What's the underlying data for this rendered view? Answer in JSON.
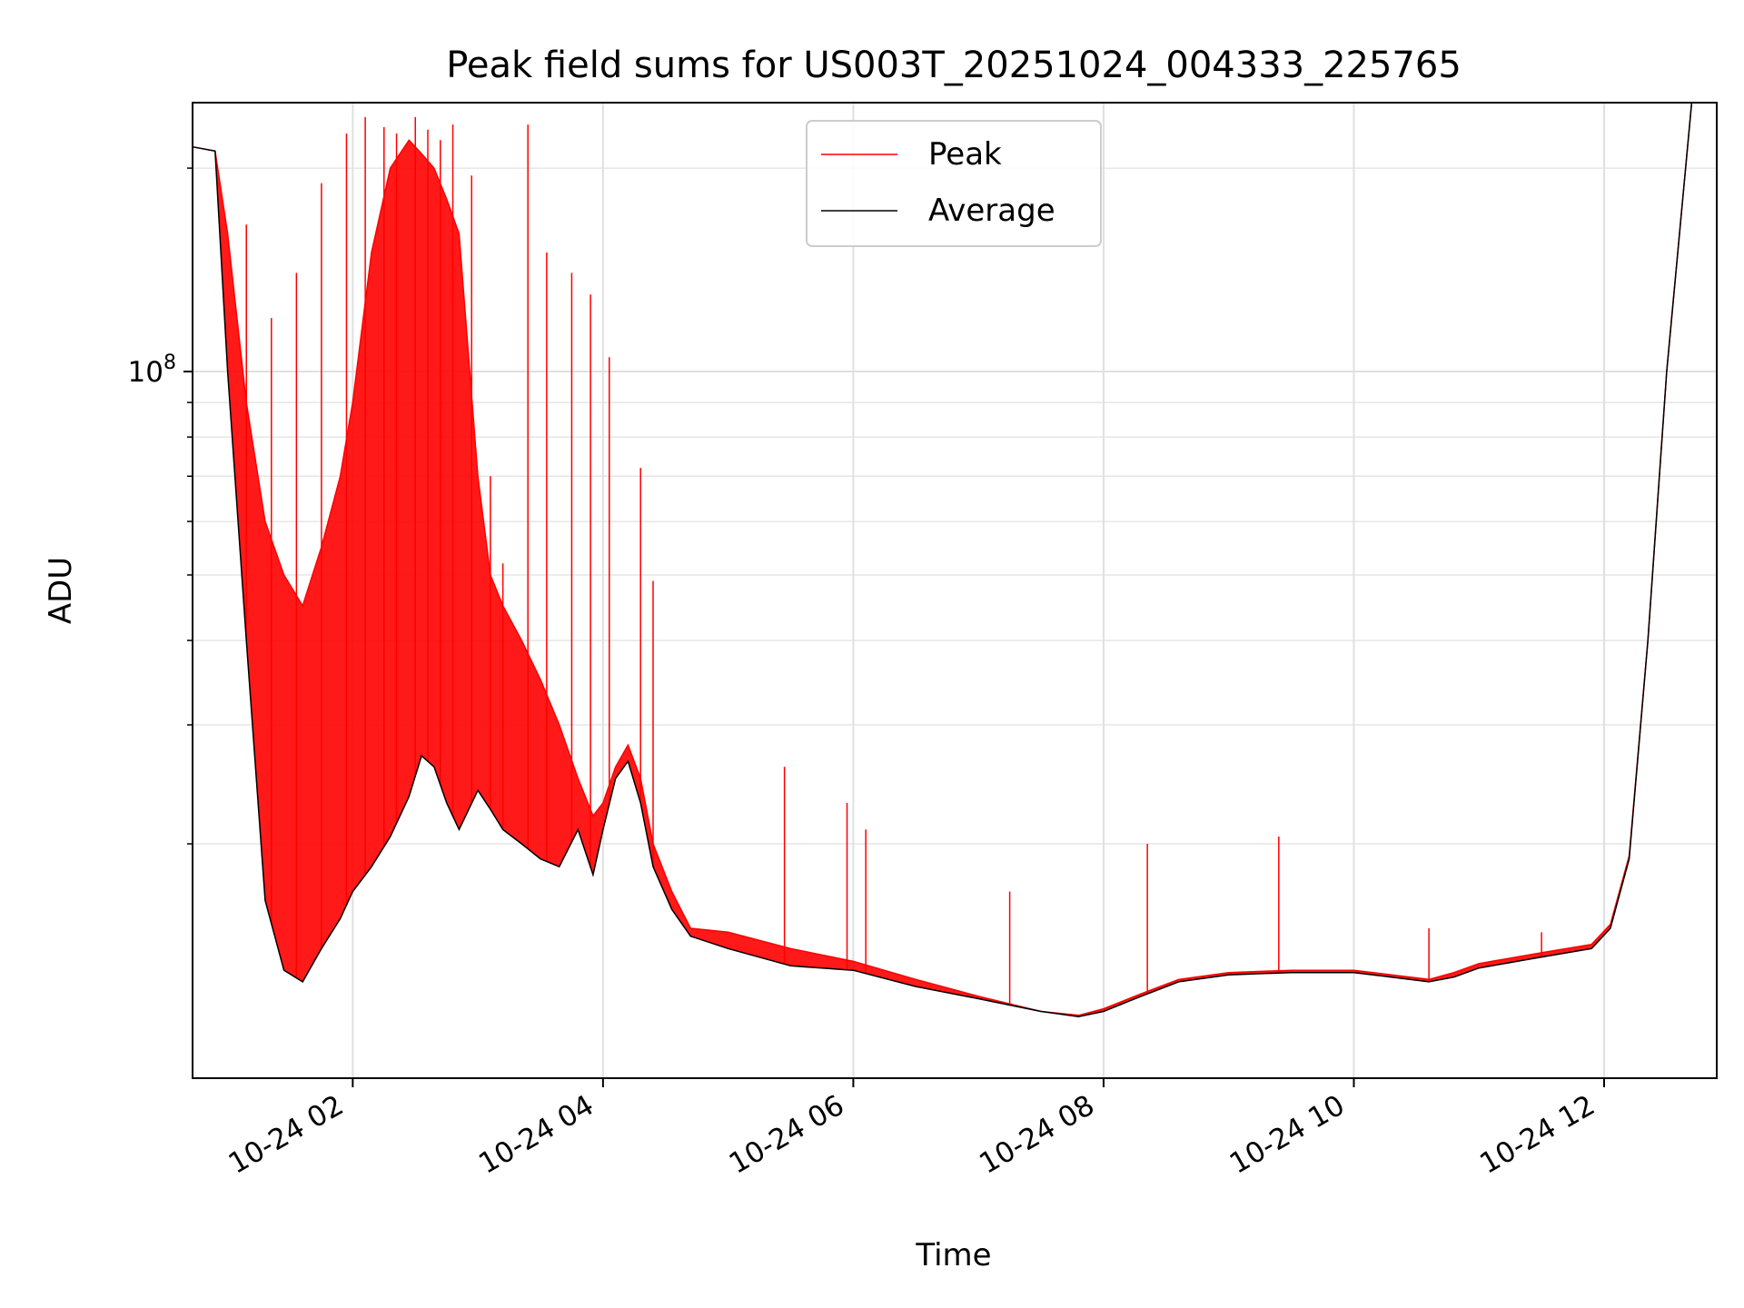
{
  "chart_data": {
    "type": "line",
    "title": "Peak field sums for US003T_20251024_004333_225765",
    "xlabel": "Time",
    "ylabel": "ADU",
    "yscale": "log",
    "ylim": [
      9000000,
      250000000
    ],
    "xlim_hours": [
      0.72,
      12.9
    ],
    "x_ticks": [
      {
        "hour": 2,
        "label": "10-24 02"
      },
      {
        "hour": 4,
        "label": "10-24 04"
      },
      {
        "hour": 6,
        "label": "10-24 06"
      },
      {
        "hour": 8,
        "label": "10-24 08"
      },
      {
        "hour": 10,
        "label": "10-24 10"
      },
      {
        "hour": 12,
        "label": "10-24 12"
      }
    ],
    "y_major_tick": {
      "value": 100000000,
      "label_base": "10",
      "label_exp": "8"
    },
    "y_minor_ticks": [
      20000000,
      30000000,
      40000000,
      50000000,
      60000000,
      70000000,
      80000000,
      90000000,
      200000000
    ],
    "grid": true,
    "legend": {
      "position": "upper center",
      "entries": [
        {
          "name": "Peak",
          "color": "#ff0000"
        },
        {
          "name": "Average",
          "color": "#000000"
        }
      ]
    },
    "series": [
      {
        "name": "Average",
        "color": "#000000",
        "hours": [
          0.72,
          0.9,
          1.0,
          1.15,
          1.3,
          1.45,
          1.6,
          1.75,
          1.9,
          2.0,
          2.15,
          2.3,
          2.45,
          2.55,
          2.65,
          2.75,
          2.85,
          3.0,
          3.1,
          3.2,
          3.35,
          3.5,
          3.65,
          3.8,
          3.92,
          4.0,
          4.1,
          4.2,
          4.3,
          4.4,
          4.55,
          4.7,
          5.0,
          5.5,
          6.0,
          6.5,
          7.0,
          7.5,
          7.8,
          8.0,
          8.3,
          8.6,
          9.0,
          9.5,
          10.0,
          10.3,
          10.6,
          10.8,
          11.0,
          11.5,
          11.9,
          12.05,
          12.2,
          12.35,
          12.5,
          12.7
        ],
        "values": [
          215000000,
          212000000,
          100000000,
          40000000,
          16500000,
          13000000,
          12500000,
          14000000,
          15500000,
          17000000,
          18500000,
          20500000,
          23500000,
          27000000,
          26000000,
          23000000,
          21000000,
          24000000,
          22500000,
          21000000,
          20000000,
          19000000,
          18500000,
          21000000,
          18000000,
          21000000,
          25000000,
          26500000,
          23000000,
          18500000,
          16000000,
          14600000,
          14000000,
          13200000,
          13000000,
          12300000,
          11800000,
          11300000,
          11100000,
          11300000,
          11900000,
          12500000,
          12800000,
          12900000,
          12900000,
          12700000,
          12500000,
          12700000,
          13100000,
          13600000,
          14000000,
          15000000,
          19000000,
          40000000,
          100000000,
          250000000
        ]
      },
      {
        "name": "Peak",
        "color": "#ff0000",
        "hours": [
          0.72,
          0.9,
          1.0,
          1.15,
          1.3,
          1.45,
          1.6,
          1.75,
          1.9,
          2.0,
          2.15,
          2.3,
          2.45,
          2.55,
          2.65,
          2.75,
          2.85,
          3.0,
          3.1,
          3.2,
          3.35,
          3.5,
          3.65,
          3.8,
          3.92,
          4.0,
          4.1,
          4.2,
          4.3,
          4.4,
          4.55,
          4.7,
          5.0,
          5.5,
          6.0,
          6.5,
          7.0,
          7.5,
          7.8,
          8.0,
          8.3,
          8.6,
          9.0,
          9.5,
          10.0,
          10.3,
          10.6,
          10.8,
          11.0,
          11.5,
          11.9,
          12.05,
          12.2,
          12.35,
          12.5,
          12.7
        ],
        "values": [
          215000000,
          212000000,
          160000000,
          90000000,
          60000000,
          50000000,
          45000000,
          55000000,
          70000000,
          90000000,
          150000000,
          200000000,
          220000000,
          210000000,
          200000000,
          180000000,
          160000000,
          70000000,
          50000000,
          45000000,
          40000000,
          35000000,
          30000000,
          25000000,
          22000000,
          23000000,
          26000000,
          28000000,
          25000000,
          20000000,
          17000000,
          15000000,
          14800000,
          14000000,
          13400000,
          12600000,
          11900000,
          11300000,
          11150000,
          11400000,
          12000000,
          12600000,
          12900000,
          13000000,
          13000000,
          12800000,
          12600000,
          12900000,
          13300000,
          13800000,
          14200000,
          15200000,
          19200000,
          40000000,
          100000000,
          250000000
        ]
      }
    ],
    "spikes_peak": [
      {
        "hour": 1.15,
        "value": 165000000
      },
      {
        "hour": 1.35,
        "value": 120000000
      },
      {
        "hour": 1.55,
        "value": 140000000
      },
      {
        "hour": 1.75,
        "value": 190000000
      },
      {
        "hour": 1.95,
        "value": 225000000
      },
      {
        "hour": 2.1,
        "value": 238000000
      },
      {
        "hour": 2.25,
        "value": 230000000
      },
      {
        "hour": 2.35,
        "value": 225000000
      },
      {
        "hour": 2.5,
        "value": 238000000
      },
      {
        "hour": 2.6,
        "value": 228000000
      },
      {
        "hour": 2.7,
        "value": 220000000
      },
      {
        "hour": 2.8,
        "value": 232000000
      },
      {
        "hour": 2.95,
        "value": 195000000
      },
      {
        "hour": 3.1,
        "value": 70000000
      },
      {
        "hour": 3.2,
        "value": 52000000
      },
      {
        "hour": 3.4,
        "value": 232000000
      },
      {
        "hour": 3.55,
        "value": 150000000
      },
      {
        "hour": 3.75,
        "value": 140000000
      },
      {
        "hour": 3.9,
        "value": 130000000
      },
      {
        "hour": 4.05,
        "value": 105000000
      },
      {
        "hour": 4.3,
        "value": 72000000
      },
      {
        "hour": 4.4,
        "value": 49000000
      },
      {
        "hour": 5.45,
        "value": 26000000
      },
      {
        "hour": 5.95,
        "value": 23000000
      },
      {
        "hour": 6.1,
        "value": 21000000
      },
      {
        "hour": 7.25,
        "value": 17000000
      },
      {
        "hour": 8.35,
        "value": 20000000
      },
      {
        "hour": 9.4,
        "value": 20500000
      },
      {
        "hour": 10.6,
        "value": 15000000
      },
      {
        "hour": 11.5,
        "value": 14800000
      }
    ]
  }
}
